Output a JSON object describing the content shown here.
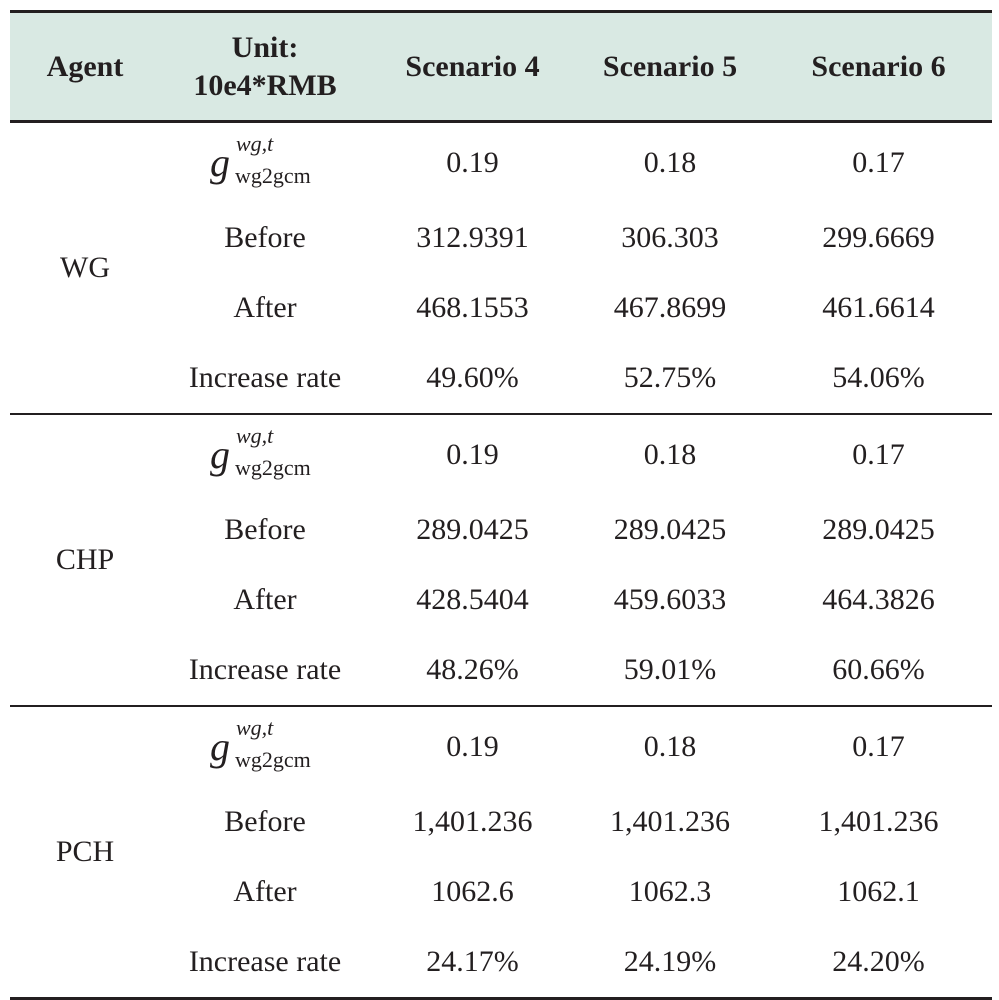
{
  "header": {
    "agent": "Agent",
    "unit_line1": "Unit:",
    "unit_line2": "10e4*RMB",
    "scenario4": "Scenario 4",
    "scenario5": "Scenario 5",
    "scenario6": "Scenario 6"
  },
  "symbol": {
    "base": "g",
    "superscript": "wg,t",
    "subscript": "wg2gcm"
  },
  "groups": [
    {
      "agent": "WG",
      "rows": [
        {
          "label": "",
          "values": [
            "0.19",
            "0.18",
            "0.17"
          ]
        },
        {
          "label": "Before",
          "values": [
            "312.9391",
            "306.303",
            "299.6669"
          ]
        },
        {
          "label": "After",
          "values": [
            "468.1553",
            "467.8699",
            "461.6614"
          ]
        },
        {
          "label": "Increase rate",
          "values": [
            "49.60%",
            "52.75%",
            "54.06%"
          ]
        }
      ]
    },
    {
      "agent": "CHP",
      "rows": [
        {
          "label": "",
          "values": [
            "0.19",
            "0.18",
            "0.17"
          ]
        },
        {
          "label": "Before",
          "values": [
            "289.0425",
            "289.0425",
            "289.0425"
          ]
        },
        {
          "label": "After",
          "values": [
            "428.5404",
            "459.6033",
            "464.3826"
          ]
        },
        {
          "label": "Increase rate",
          "values": [
            "48.26%",
            "59.01%",
            "60.66%"
          ]
        }
      ]
    },
    {
      "agent": "PCH",
      "rows": [
        {
          "label": "",
          "values": [
            "0.19",
            "0.18",
            "0.17"
          ]
        },
        {
          "label": "Before",
          "values": [
            "1,401.236",
            "1,401.236",
            "1,401.236"
          ]
        },
        {
          "label": "After",
          "values": [
            "1062.6",
            "1062.3",
            "1062.1"
          ]
        },
        {
          "label": "Increase rate",
          "values": [
            "24.17%",
            "24.19%",
            "24.20%"
          ]
        }
      ]
    }
  ]
}
